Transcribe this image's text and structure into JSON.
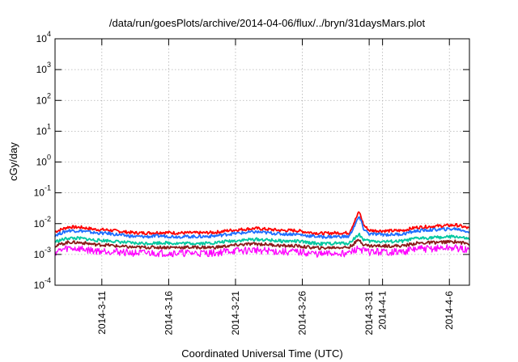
{
  "chart_data": {
    "type": "line",
    "title": "/data/run/goesPlots/archive/2014-04-06/flux/../bryn/31daysMars.plot",
    "xlabel": "Coordinated Universal Time (UTC)",
    "ylabel": "cGy/day",
    "x_range": [
      "2014-03-07T12:00",
      "2014-04-07T12:00"
    ],
    "ylim": [
      0.0001,
      10000
    ],
    "y_scale": "log",
    "y_ticks": [
      {
        "base": "10",
        "exp": "-4",
        "value": 0.0001
      },
      {
        "base": "10",
        "exp": "-3",
        "value": 0.001
      },
      {
        "base": "10",
        "exp": "-2",
        "value": 0.01
      },
      {
        "base": "10",
        "exp": "-1",
        "value": 0.1
      },
      {
        "base": "10",
        "exp": "0",
        "value": 1
      },
      {
        "base": "10",
        "exp": "1",
        "value": 10
      },
      {
        "base": "10",
        "exp": "2",
        "value": 100
      },
      {
        "base": "10",
        "exp": "3",
        "value": 1000
      },
      {
        "base": "10",
        "exp": "4",
        "value": 10000
      }
    ],
    "x_ticks": [
      {
        "label": "2014-3-11",
        "date": "2014-03-11"
      },
      {
        "label": "2014-3-16",
        "date": "2014-03-16"
      },
      {
        "label": "2014-3-21",
        "date": "2014-03-21"
      },
      {
        "label": "2014-3-26",
        "date": "2014-03-26"
      },
      {
        "label": "2014-3-31",
        "date": "2014-03-31"
      },
      {
        "label": "2014-4-1",
        "date": "2014-04-01"
      },
      {
        "label": "2014-4-6",
        "date": "2014-04-06"
      }
    ],
    "grid": true,
    "series": [
      {
        "color": "#ff0000",
        "values": [
          [
            "2014-03-07T12:00",
            0.0055
          ],
          [
            "2014-03-08T12:00",
            0.0078
          ],
          [
            "2014-03-09T12:00",
            0.0075
          ],
          [
            "2014-03-10T12:00",
            0.0065
          ],
          [
            "2014-03-11T12:00",
            0.0062
          ],
          [
            "2014-03-12T12:00",
            0.0055
          ],
          [
            "2014-03-13T12:00",
            0.005
          ],
          [
            "2014-03-14T12:00",
            0.005
          ],
          [
            "2014-03-15T12:00",
            0.0052
          ],
          [
            "2014-03-16T12:00",
            0.005
          ],
          [
            "2014-03-17T12:00",
            0.005
          ],
          [
            "2014-03-18T12:00",
            0.005
          ],
          [
            "2014-03-19T12:00",
            0.0052
          ],
          [
            "2014-03-20T12:00",
            0.006
          ],
          [
            "2014-03-21T12:00",
            0.0065
          ],
          [
            "2014-03-22T12:00",
            0.007
          ],
          [
            "2014-03-23T12:00",
            0.0065
          ],
          [
            "2014-03-24T12:00",
            0.006
          ],
          [
            "2014-03-25T12:00",
            0.006
          ],
          [
            "2014-03-26T12:00",
            0.0052
          ],
          [
            "2014-03-27T12:00",
            0.0048
          ],
          [
            "2014-03-28T12:00",
            0.005
          ],
          [
            "2014-03-29T12:00",
            0.005
          ],
          [
            "2014-03-29T20:00",
            0.01
          ],
          [
            "2014-03-30T06:00",
            0.025
          ],
          [
            "2014-03-30T14:00",
            0.009
          ],
          [
            "2014-03-31T00:00",
            0.006
          ],
          [
            "2014-04-01T12:00",
            0.0058
          ],
          [
            "2014-04-02T12:00",
            0.006
          ],
          [
            "2014-04-03T12:00",
            0.0075
          ],
          [
            "2014-04-04T12:00",
            0.008
          ],
          [
            "2014-04-05T12:00",
            0.0085
          ],
          [
            "2014-04-06T12:00",
            0.009
          ],
          [
            "2014-04-07T12:00",
            0.007
          ]
        ]
      },
      {
        "color": "#1f6fff",
        "values": [
          [
            "2014-03-07T12:00",
            0.0042
          ],
          [
            "2014-03-08T12:00",
            0.006
          ],
          [
            "2014-03-09T12:00",
            0.0058
          ],
          [
            "2014-03-10T12:00",
            0.005
          ],
          [
            "2014-03-11T12:00",
            0.0048
          ],
          [
            "2014-03-12T12:00",
            0.0042
          ],
          [
            "2014-03-13T12:00",
            0.0038
          ],
          [
            "2014-03-14T12:00",
            0.0038
          ],
          [
            "2014-03-15T12:00",
            0.004
          ],
          [
            "2014-03-16T12:00",
            0.0038
          ],
          [
            "2014-03-17T12:00",
            0.0038
          ],
          [
            "2014-03-18T12:00",
            0.0038
          ],
          [
            "2014-03-19T12:00",
            0.004
          ],
          [
            "2014-03-20T12:00",
            0.0046
          ],
          [
            "2014-03-21T12:00",
            0.005
          ],
          [
            "2014-03-22T12:00",
            0.0054
          ],
          [
            "2014-03-23T12:00",
            0.005
          ],
          [
            "2014-03-24T12:00",
            0.0046
          ],
          [
            "2014-03-25T12:00",
            0.0046
          ],
          [
            "2014-03-26T12:00",
            0.004
          ],
          [
            "2014-03-27T12:00",
            0.0037
          ],
          [
            "2014-03-28T12:00",
            0.0038
          ],
          [
            "2014-03-29T12:00",
            0.0038
          ],
          [
            "2014-03-29T20:00",
            0.0075
          ],
          [
            "2014-03-30T06:00",
            0.017
          ],
          [
            "2014-03-30T14:00",
            0.0068
          ],
          [
            "2014-03-31T00:00",
            0.0046
          ],
          [
            "2014-04-01T12:00",
            0.0044
          ],
          [
            "2014-04-02T12:00",
            0.0046
          ],
          [
            "2014-04-03T12:00",
            0.0058
          ],
          [
            "2014-04-04T12:00",
            0.0062
          ],
          [
            "2014-04-05T12:00",
            0.0065
          ],
          [
            "2014-04-06T12:00",
            0.0068
          ],
          [
            "2014-04-07T12:00",
            0.0054
          ]
        ]
      },
      {
        "color": "#00c8a0",
        "values": [
          [
            "2014-03-07T12:00",
            0.0026
          ],
          [
            "2014-03-08T12:00",
            0.0034
          ],
          [
            "2014-03-09T12:00",
            0.0033
          ],
          [
            "2014-03-10T12:00",
            0.0029
          ],
          [
            "2014-03-11T12:00",
            0.0028
          ],
          [
            "2014-03-12T12:00",
            0.0025
          ],
          [
            "2014-03-13T12:00",
            0.0023
          ],
          [
            "2014-03-14T12:00",
            0.0023
          ],
          [
            "2014-03-15T12:00",
            0.0024
          ],
          [
            "2014-03-16T12:00",
            0.0023
          ],
          [
            "2014-03-17T12:00",
            0.0023
          ],
          [
            "2014-03-18T12:00",
            0.0023
          ],
          [
            "2014-03-19T12:00",
            0.0024
          ],
          [
            "2014-03-20T12:00",
            0.0027
          ],
          [
            "2014-03-21T12:00",
            0.0029
          ],
          [
            "2014-03-22T12:00",
            0.0031
          ],
          [
            "2014-03-23T12:00",
            0.0029
          ],
          [
            "2014-03-24T12:00",
            0.0027
          ],
          [
            "2014-03-25T12:00",
            0.0027
          ],
          [
            "2014-03-26T12:00",
            0.0024
          ],
          [
            "2014-03-27T12:00",
            0.0022
          ],
          [
            "2014-03-28T12:00",
            0.0023
          ],
          [
            "2014-03-29T12:00",
            0.0023
          ],
          [
            "2014-03-29T20:00",
            0.0032
          ],
          [
            "2014-03-30T06:00",
            0.0045
          ],
          [
            "2014-03-30T14:00",
            0.003
          ],
          [
            "2014-03-31T00:00",
            0.0027
          ],
          [
            "2014-04-01T12:00",
            0.0026
          ],
          [
            "2014-04-02T12:00",
            0.0027
          ],
          [
            "2014-04-03T12:00",
            0.0033
          ],
          [
            "2014-04-04T12:00",
            0.0035
          ],
          [
            "2014-04-05T12:00",
            0.0036
          ],
          [
            "2014-04-06T12:00",
            0.0038
          ],
          [
            "2014-04-07T12:00",
            0.0031
          ]
        ]
      },
      {
        "color": "#8b1a1a",
        "values": [
          [
            "2014-03-07T12:00",
            0.0019
          ],
          [
            "2014-03-08T12:00",
            0.0025
          ],
          [
            "2014-03-09T12:00",
            0.0024
          ],
          [
            "2014-03-10T12:00",
            0.0021
          ],
          [
            "2014-03-11T12:00",
            0.002
          ],
          [
            "2014-03-12T12:00",
            0.0018
          ],
          [
            "2014-03-13T12:00",
            0.0017
          ],
          [
            "2014-03-14T12:00",
            0.0017
          ],
          [
            "2014-03-15T12:00",
            0.0017
          ],
          [
            "2014-03-16T12:00",
            0.0017
          ],
          [
            "2014-03-17T12:00",
            0.0017
          ],
          [
            "2014-03-18T12:00",
            0.0017
          ],
          [
            "2014-03-19T12:00",
            0.0017
          ],
          [
            "2014-03-20T12:00",
            0.0019
          ],
          [
            "2014-03-21T12:00",
            0.0021
          ],
          [
            "2014-03-22T12:00",
            0.0022
          ],
          [
            "2014-03-23T12:00",
            0.0021
          ],
          [
            "2014-03-24T12:00",
            0.0019
          ],
          [
            "2014-03-25T12:00",
            0.0019
          ],
          [
            "2014-03-26T12:00",
            0.0017
          ],
          [
            "2014-03-27T12:00",
            0.0016
          ],
          [
            "2014-03-28T12:00",
            0.0017
          ],
          [
            "2014-03-29T12:00",
            0.0017
          ],
          [
            "2014-03-29T20:00",
            0.0022
          ],
          [
            "2014-03-30T06:00",
            0.003
          ],
          [
            "2014-03-30T14:00",
            0.0021
          ],
          [
            "2014-03-31T00:00",
            0.0019
          ],
          [
            "2014-04-01T12:00",
            0.0019
          ],
          [
            "2014-04-02T12:00",
            0.0019
          ],
          [
            "2014-04-03T12:00",
            0.0023
          ],
          [
            "2014-04-04T12:00",
            0.0024
          ],
          [
            "2014-04-05T12:00",
            0.0025
          ],
          [
            "2014-04-06T12:00",
            0.0026
          ],
          [
            "2014-04-07T12:00",
            0.0022
          ]
        ]
      },
      {
        "color": "#ff00ff",
        "values": [
          [
            "2014-03-07T12:00",
            0.0012
          ],
          [
            "2014-03-08T12:00",
            0.0016
          ],
          [
            "2014-03-09T12:00",
            0.0015
          ],
          [
            "2014-03-10T12:00",
            0.0013
          ],
          [
            "2014-03-11T12:00",
            0.0013
          ],
          [
            "2014-03-12T12:00",
            0.0012
          ],
          [
            "2014-03-13T12:00",
            0.0011
          ],
          [
            "2014-03-14T12:00",
            0.0011
          ],
          [
            "2014-03-15T12:00",
            0.0011
          ],
          [
            "2014-03-16T12:00",
            0.0011
          ],
          [
            "2014-03-17T12:00",
            0.0011
          ],
          [
            "2014-03-18T12:00",
            0.0011
          ],
          [
            "2014-03-19T12:00",
            0.0011
          ],
          [
            "2014-03-20T12:00",
            0.0013
          ],
          [
            "2014-03-21T12:00",
            0.0013
          ],
          [
            "2014-03-22T12:00",
            0.0014
          ],
          [
            "2014-03-23T12:00",
            0.0013
          ],
          [
            "2014-03-24T12:00",
            0.0012
          ],
          [
            "2014-03-25T12:00",
            0.0012
          ],
          [
            "2014-03-26T12:00",
            0.0011
          ],
          [
            "2014-03-27T12:00",
            0.001
          ],
          [
            "2014-03-28T12:00",
            0.0011
          ],
          [
            "2014-03-29T12:00",
            0.0011
          ],
          [
            "2014-03-29T20:00",
            0.0013
          ],
          [
            "2014-03-30T06:00",
            0.0016
          ],
          [
            "2014-03-30T14:00",
            0.0013
          ],
          [
            "2014-03-31T00:00",
            0.0012
          ],
          [
            "2014-04-01T12:00",
            0.0012
          ],
          [
            "2014-04-02T12:00",
            0.0012
          ],
          [
            "2014-04-03T12:00",
            0.0015
          ],
          [
            "2014-04-04T12:00",
            0.0015
          ],
          [
            "2014-04-05T12:00",
            0.0016
          ],
          [
            "2014-04-06T12:00",
            0.0016
          ],
          [
            "2014-04-07T12:00",
            0.0013
          ]
        ]
      }
    ]
  }
}
